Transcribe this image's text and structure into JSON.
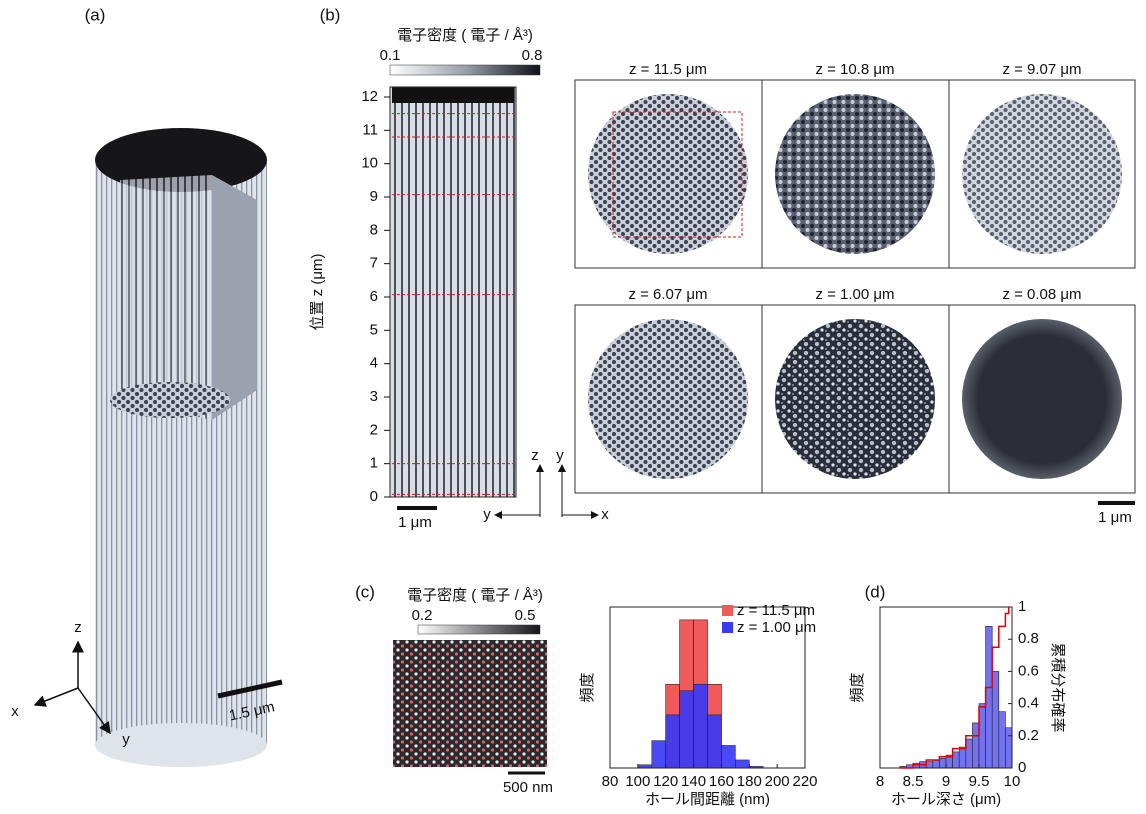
{
  "figure": {
    "panel_a": {
      "label": "(a)",
      "axis_z": "z",
      "axis_x": "x",
      "axis_y": "y",
      "scale_bar": "1.5 μm"
    },
    "panel_b": {
      "label": "(b)",
      "colorbar": {
        "title": "電子密度 ( 電子 / Å³)",
        "range": [
          0.1,
          0.8
        ]
      },
      "ylabel": "位置  z (μm)",
      "ylim": [
        0,
        12.3
      ],
      "yticks": [
        0,
        1,
        2,
        3,
        4,
        5,
        6,
        7,
        8,
        9,
        10,
        11,
        12
      ],
      "scale_bar": "1 μm",
      "axis_z": "z",
      "axis_y_left": "y",
      "axis_y_up": "y",
      "axis_x": "x",
      "slices": [
        {
          "label": "z = 11.5 μm",
          "z": 11.5
        },
        {
          "label": "z = 10.8 μm",
          "z": 10.8
        },
        {
          "label": "z = 9.07 μm",
          "z": 9.07
        },
        {
          "label": "z = 6.07 μm",
          "z": 6.07
        },
        {
          "label": "z = 1.00 μm",
          "z": 1.0
        },
        {
          "label": "z = 0.08 μm",
          "z": 0.08
        }
      ],
      "slices_scale_bar": "1 μm"
    },
    "panel_c": {
      "label": "(c)",
      "colorbar": {
        "title": "電子密度 ( 電子 / Å³)",
        "range": [
          0.2,
          0.5
        ]
      },
      "scale_bar": "500 nm"
    },
    "panel_d": {
      "label": "(d)"
    }
  },
  "chart_data": [
    {
      "type": "histogram",
      "ylabel": "頻度",
      "xlabel": "ホール間距離 (nm)",
      "bins": [
        100,
        110,
        120,
        130,
        140,
        150,
        160,
        170,
        180,
        190
      ],
      "series": [
        {
          "name": "z = 11.5 μm",
          "color": "#f05a5a",
          "values": [
            0,
            0,
            0.52,
            0.92,
            0.92,
            0.52,
            0,
            0,
            0
          ]
        },
        {
          "name": "z = 1.00 μm",
          "color": "#3a3af5",
          "values": [
            0.02,
            0.17,
            0.33,
            0.48,
            0.52,
            0.33,
            0.14,
            0.05,
            0.01
          ]
        }
      ],
      "xlim": [
        80,
        220
      ],
      "xticks": [
        80,
        100,
        120,
        140,
        160,
        180,
        200,
        220
      ],
      "ylim": [
        0,
        1
      ],
      "legend": "top-right"
    },
    {
      "type": "histogram",
      "ylabel": "頻度",
      "xlabel": "ホール深さ (μm)",
      "y2label": "累積分布確率",
      "bins": [
        8.3,
        8.4,
        8.5,
        8.6,
        8.7,
        8.8,
        8.9,
        9.0,
        9.1,
        9.2,
        9.3,
        9.4,
        9.5,
        9.6,
        9.7,
        9.8,
        9.9,
        10.0
      ],
      "series": [
        {
          "color": "#7373f2",
          "values": [
            0.01,
            0.02,
            0.03,
            0.04,
            0.04,
            0.05,
            0.06,
            0.08,
            0.1,
            0.13,
            0.18,
            0.28,
            0.4,
            0.88,
            0.6,
            0.35,
            0.25
          ]
        }
      ],
      "line": {
        "color": "#e00000",
        "axis": "y2",
        "x": [
          8.3,
          8.5,
          8.7,
          8.9,
          9.1,
          9.3,
          9.5,
          9.6,
          9.7,
          9.8,
          9.9,
          9.95
        ],
        "values": [
          0,
          0.02,
          0.05,
          0.07,
          0.12,
          0.2,
          0.38,
          0.5,
          0.75,
          0.88,
          0.96,
          1
        ]
      },
      "xlim": [
        8,
        10
      ],
      "xticks": [
        8,
        8.5,
        9,
        9.5,
        10
      ],
      "ylim": [
        0,
        1
      ],
      "y2lim": [
        0,
        1
      ],
      "y2ticks": [
        0,
        0.2,
        0.4,
        0.6,
        0.8,
        1
      ]
    }
  ]
}
